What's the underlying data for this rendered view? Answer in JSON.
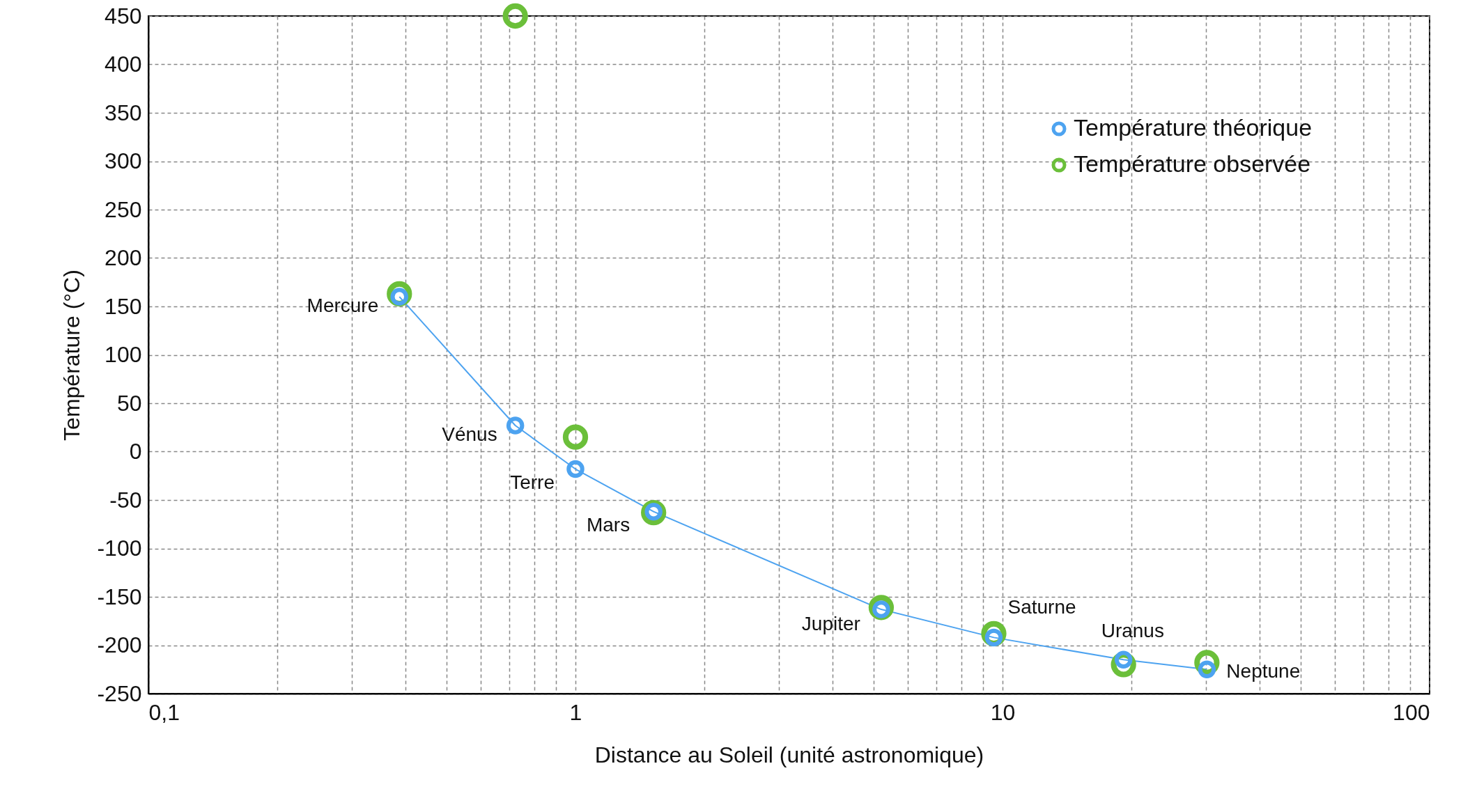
{
  "chart_data": {
    "type": "scatter",
    "xlabel": "Distance au Soleil (unité astronomique)",
    "ylabel": "Température (°C)",
    "log": "x",
    "xlim": [
      0.1,
      100
    ],
    "ylim": [
      -250,
      450
    ],
    "xticks": [
      {
        "value": 0.1,
        "label": "0,1"
      },
      {
        "value": 0.2,
        "label": null
      },
      {
        "value": 0.3,
        "label": null
      },
      {
        "value": 0.4,
        "label": null
      },
      {
        "value": 0.5,
        "label": null
      },
      {
        "value": 0.6,
        "label": null
      },
      {
        "value": 0.7,
        "label": null
      },
      {
        "value": 0.8,
        "label": null
      },
      {
        "value": 0.9,
        "label": null
      },
      1,
      {
        "value": 2,
        "label": null
      },
      {
        "value": 3,
        "label": null
      },
      {
        "value": 4,
        "label": null
      },
      {
        "value": 5,
        "label": null
      },
      {
        "value": 6,
        "label": null
      },
      {
        "value": 7,
        "label": null
      },
      {
        "value": 8,
        "label": null
      },
      {
        "value": 9,
        "label": null
      },
      10,
      {
        "value": 20,
        "label": null
      },
      {
        "value": 30,
        "label": null
      },
      {
        "value": 40,
        "label": null
      },
      {
        "value": 50,
        "label": null
      },
      {
        "value": 60,
        "label": null
      },
      {
        "value": 70,
        "label": null
      },
      {
        "value": 80,
        "label": null
      },
      {
        "value": 90,
        "label": null
      },
      100
    ],
    "yticks": [
      -250,
      -200,
      -150,
      -100,
      -50,
      0,
      50,
      100,
      150,
      200,
      250,
      300,
      350,
      400,
      450
    ],
    "grid": true,
    "legend": "top right",
    "marker": "circle",
    "x": [
      0.387,
      0.723,
      1,
      1.524,
      5.2,
      9.54,
      19.2,
      30.1
    ],
    "series": [
      {
        "name": "Température théorique",
        "type": "line",
        "color": "#4da3f0",
        "values": [
          160,
          27,
          -18,
          -62,
          -163,
          -192,
          -215,
          -225
        ]
      },
      {
        "name": "Température observée",
        "color": "#6bbf3a",
        "values": [
          163,
          450,
          15,
          -63,
          -161,
          -188,
          -220,
          -218
        ]
      }
    ],
    "annotations": [
      {
        "text": "Mercure",
        "x": 0.387,
        "y": 160
      },
      {
        "text": "Vénus",
        "x": 0.723,
        "y": 27
      },
      {
        "text": "Terre",
        "x": 1,
        "y": -18
      },
      {
        "text": "Mars",
        "x": 1.524,
        "y": -62
      },
      {
        "text": "Jupiter",
        "x": 5.2,
        "y": -163
      },
      {
        "text": "Saturne",
        "x": 9.54,
        "y": -192
      },
      {
        "text": "Uranus",
        "x": 19.2,
        "y": -215
      },
      {
        "text": "Neptune",
        "x": 30.1,
        "y": -225
      }
    ]
  }
}
